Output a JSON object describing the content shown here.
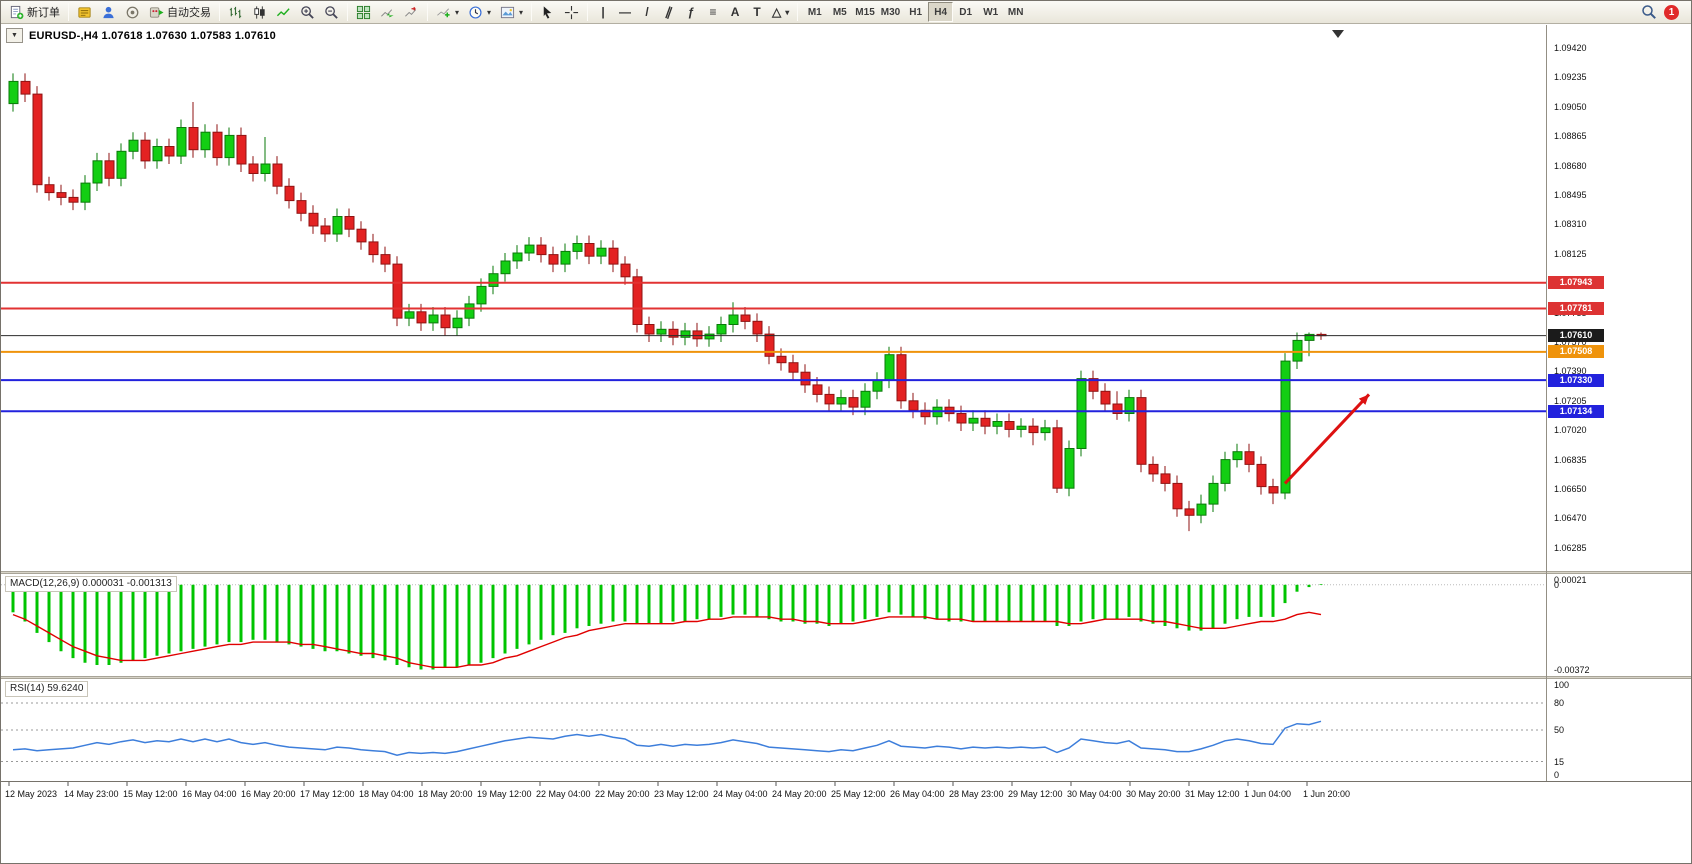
{
  "toolbar": {
    "new_order_label": "新订单",
    "auto_trading_label": "自动交易",
    "timeframes": [
      "M1",
      "M5",
      "M15",
      "M30",
      "H1",
      "H4",
      "D1",
      "W1",
      "MN"
    ],
    "active_timeframe": "H4",
    "notification_count": "1",
    "draw_tools": [
      {
        "name": "vertical-line",
        "glyph": "|"
      },
      {
        "name": "horizontal-line",
        "glyph": "—"
      },
      {
        "name": "trend-line",
        "glyph": "/"
      },
      {
        "name": "equidistant-channel",
        "glyph": "∥",
        "rotate": 20
      },
      {
        "name": "fibonacci-retracement",
        "glyph": "ƒ"
      },
      {
        "name": "cycle-lines",
        "glyph": "≡"
      },
      {
        "name": "text",
        "glyph": "A"
      },
      {
        "name": "text-label",
        "glyph": "T"
      },
      {
        "name": "arrows-shapes",
        "glyph": "△",
        "dropdown": true
      }
    ]
  },
  "chart": {
    "symbol_period": "EURUSD-,H4",
    "ohlc_line": "1.07618 1.07630 1.07583 1.07610",
    "price_axis_labels": [
      "1.09420",
      "1.09235",
      "1.09050",
      "1.08865",
      "1.08680",
      "1.08495",
      "1.08310",
      "1.08125",
      "1.07940",
      "1.07755",
      "1.07570",
      "1.07390",
      "1.07205",
      "1.07020",
      "1.06835",
      "1.06650",
      "1.06470",
      "1.06285"
    ],
    "price_tags": [
      {
        "text": "1.07943",
        "price": 1.07943,
        "bg": "#dd3333"
      },
      {
        "text": "1.07781",
        "price": 1.07781,
        "bg": "#dd3333"
      },
      {
        "text": "1.07610",
        "price": 1.0761,
        "bg": "#1b1b1b"
      },
      {
        "text": "1.07508",
        "price": 1.07508,
        "bg": "#ef930b"
      },
      {
        "text": "1.07330",
        "price": 1.0733,
        "bg": "#2222dd"
      },
      {
        "text": "1.07134",
        "price": 1.07134,
        "bg": "#2222dd"
      }
    ],
    "time_axis_labels": [
      "12 May 2023",
      "14 May 23:00",
      "15 May 12:00",
      "16 May 04:00",
      "16 May 20:00",
      "17 May 12:00",
      "18 May 04:00",
      "18 May 20:00",
      "19 May 12:00",
      "22 May 04:00",
      "22 May 20:00",
      "23 May 12:00",
      "24 May 04:00",
      "24 May 20:00",
      "25 May 12:00",
      "26 May 04:00",
      "28 May 23:00",
      "29 May 12:00",
      "30 May 04:00",
      "30 May 20:00",
      "31 May 12:00",
      "1 Jun 04:00",
      "1 Jun 20:00"
    ]
  },
  "chart_data": {
    "type": "candlestick",
    "symbol": "EURUSD",
    "timeframe": "H4",
    "current_ohlc": {
      "open": "1.07618",
      "high": "1.07630",
      "low": "1.07583",
      "close": "1.07610"
    },
    "y_range": [
      1.0613,
      1.0956
    ],
    "style": {
      "up_fill": "#13ce13",
      "up_border": "#0a7a0a",
      "down_fill": "#e32222",
      "down_border": "#8f1313"
    },
    "candles": [
      [
        1.0907,
        1.0926,
        1.0902,
        1.0921
      ],
      [
        1.0921,
        1.0926,
        1.0908,
        1.0913
      ],
      [
        1.0913,
        1.0918,
        1.0851,
        1.0856
      ],
      [
        1.0856,
        1.0861,
        1.0846,
        1.0851
      ],
      [
        1.0851,
        1.0856,
        1.0843,
        1.0848
      ],
      [
        1.0848,
        1.0853,
        1.084,
        1.0845
      ],
      [
        1.0845,
        1.0862,
        1.084,
        1.0857
      ],
      [
        1.0857,
        1.0876,
        1.0852,
        1.0871
      ],
      [
        1.0871,
        1.0876,
        1.0855,
        1.086
      ],
      [
        1.086,
        1.0882,
        1.0855,
        1.0877
      ],
      [
        1.0877,
        1.0889,
        1.0872,
        1.0884
      ],
      [
        1.0884,
        1.0889,
        1.0866,
        1.0871
      ],
      [
        1.0871,
        1.0885,
        1.0866,
        1.088
      ],
      [
        1.088,
        1.0885,
        1.0869,
        1.0874
      ],
      [
        1.0874,
        1.0897,
        1.0869,
        1.0892
      ],
      [
        1.0892,
        1.0908,
        1.0873,
        1.0878
      ],
      [
        1.0878,
        1.0894,
        1.0873,
        1.0889
      ],
      [
        1.0889,
        1.0894,
        1.0868,
        1.0873
      ],
      [
        1.0873,
        1.0892,
        1.0868,
        1.0887
      ],
      [
        1.0887,
        1.0892,
        1.0864,
        1.0869
      ],
      [
        1.0869,
        1.0874,
        1.0858,
        1.0863
      ],
      [
        1.0863,
        1.0886,
        1.0858,
        1.0869
      ],
      [
        1.0869,
        1.0874,
        1.085,
        1.0855
      ],
      [
        1.0855,
        1.086,
        1.0841,
        1.0846
      ],
      [
        1.0846,
        1.0851,
        1.0833,
        1.0838
      ],
      [
        1.0838,
        1.0843,
        1.0825,
        1.083
      ],
      [
        1.083,
        1.0835,
        1.082,
        1.0825
      ],
      [
        1.0825,
        1.0841,
        1.082,
        1.0836
      ],
      [
        1.0836,
        1.0841,
        1.0823,
        1.0828
      ],
      [
        1.0828,
        1.0833,
        1.0815,
        1.082
      ],
      [
        1.082,
        1.0825,
        1.0807,
        1.0812
      ],
      [
        1.0812,
        1.0817,
        1.0801,
        1.0806
      ],
      [
        1.0806,
        1.0811,
        1.0767,
        1.0772
      ],
      [
        1.0772,
        1.0781,
        1.0767,
        1.0776
      ],
      [
        1.0776,
        1.0781,
        1.0764,
        1.0769
      ],
      [
        1.0769,
        1.0779,
        1.0764,
        1.0774
      ],
      [
        1.0774,
        1.0779,
        1.0761,
        1.0766
      ],
      [
        1.0766,
        1.0777,
        1.0761,
        1.0772
      ],
      [
        1.0772,
        1.0786,
        1.0767,
        1.0781
      ],
      [
        1.0781,
        1.0797,
        1.0776,
        1.0792
      ],
      [
        1.0792,
        1.0805,
        1.0787,
        1.08
      ],
      [
        1.08,
        1.0813,
        1.0795,
        1.0808
      ],
      [
        1.0808,
        1.0818,
        1.0803,
        1.0813
      ],
      [
        1.0813,
        1.0823,
        1.0808,
        1.0818
      ],
      [
        1.0818,
        1.0823,
        1.0807,
        1.0812
      ],
      [
        1.0812,
        1.0817,
        1.0801,
        1.0806
      ],
      [
        1.0806,
        1.0819,
        1.0801,
        1.0814
      ],
      [
        1.0814,
        1.0824,
        1.0809,
        1.0819
      ],
      [
        1.0819,
        1.0824,
        1.0806,
        1.0811
      ],
      [
        1.0811,
        1.0821,
        1.0806,
        1.0816
      ],
      [
        1.0816,
        1.0821,
        1.0801,
        1.0806
      ],
      [
        1.0806,
        1.0811,
        1.0793,
        1.0798
      ],
      [
        1.0798,
        1.0803,
        1.0763,
        1.0768
      ],
      [
        1.0768,
        1.0773,
        1.0757,
        1.0762
      ],
      [
        1.0762,
        1.077,
        1.0757,
        1.0765
      ],
      [
        1.0765,
        1.077,
        1.0755,
        1.076
      ],
      [
        1.076,
        1.0769,
        1.0755,
        1.0764
      ],
      [
        1.0764,
        1.0769,
        1.0754,
        1.0759
      ],
      [
        1.0759,
        1.0767,
        1.0754,
        1.0762
      ],
      [
        1.0762,
        1.0773,
        1.0757,
        1.0768
      ],
      [
        1.0768,
        1.0782,
        1.0763,
        1.0774
      ],
      [
        1.0774,
        1.0779,
        1.0765,
        1.077
      ],
      [
        1.077,
        1.0775,
        1.0757,
        1.0762
      ],
      [
        1.0762,
        1.0767,
        1.0743,
        1.0748
      ],
      [
        1.0748,
        1.0753,
        1.0739,
        1.0744
      ],
      [
        1.0744,
        1.0749,
        1.0733,
        1.0738
      ],
      [
        1.0738,
        1.0743,
        1.0725,
        1.073
      ],
      [
        1.073,
        1.0735,
        1.0719,
        1.0724
      ],
      [
        1.0724,
        1.0729,
        1.0713,
        1.0718
      ],
      [
        1.0718,
        1.0727,
        1.0713,
        1.0722
      ],
      [
        1.0722,
        1.0727,
        1.0711,
        1.0716
      ],
      [
        1.0716,
        1.0731,
        1.0711,
        1.0726
      ],
      [
        1.0726,
        1.0738,
        1.0721,
        1.0733
      ],
      [
        1.0733,
        1.0754,
        1.0728,
        1.0749
      ],
      [
        1.0749,
        1.0754,
        1.0715,
        1.072
      ],
      [
        1.072,
        1.0725,
        1.0709,
        1.0714
      ],
      [
        1.0714,
        1.0719,
        1.0705,
        1.071
      ],
      [
        1.071,
        1.0721,
        1.0705,
        1.0716
      ],
      [
        1.0716,
        1.0721,
        1.0707,
        1.0712
      ],
      [
        1.0712,
        1.0717,
        1.0701,
        1.0706
      ],
      [
        1.0706,
        1.0714,
        1.0701,
        1.0709
      ],
      [
        1.0709,
        1.0714,
        1.0699,
        1.0704
      ],
      [
        1.0704,
        1.0712,
        1.0699,
        1.0707
      ],
      [
        1.0707,
        1.0712,
        1.0697,
        1.0702
      ],
      [
        1.0702,
        1.0709,
        1.0697,
        1.0704
      ],
      [
        1.0704,
        1.0709,
        1.0692,
        1.07
      ],
      [
        1.07,
        1.0708,
        1.0695,
        1.0703
      ],
      [
        1.0703,
        1.0708,
        1.0662,
        1.0665
      ],
      [
        1.0665,
        1.0695,
        1.066,
        1.069
      ],
      [
        1.069,
        1.0739,
        1.0685,
        1.0734
      ],
      [
        1.0734,
        1.0739,
        1.0721,
        1.0726
      ],
      [
        1.0726,
        1.0731,
        1.0713,
        1.0718
      ],
      [
        1.0718,
        1.0726,
        1.0708,
        1.0712
      ],
      [
        1.0712,
        1.0727,
        1.0707,
        1.0722
      ],
      [
        1.0722,
        1.0727,
        1.0675,
        1.068
      ],
      [
        1.068,
        1.0685,
        1.0669,
        1.0674
      ],
      [
        1.0674,
        1.0679,
        1.0663,
        1.0668
      ],
      [
        1.0668,
        1.0673,
        1.0647,
        1.0652
      ],
      [
        1.0652,
        1.0657,
        1.0638,
        1.0648
      ],
      [
        1.0648,
        1.0661,
        1.0643,
        1.0655
      ],
      [
        1.0655,
        1.0673,
        1.065,
        1.0668
      ],
      [
        1.0668,
        1.0688,
        1.0663,
        1.0683
      ],
      [
        1.0683,
        1.0693,
        1.0678,
        1.0688
      ],
      [
        1.0688,
        1.0693,
        1.0675,
        1.068
      ],
      [
        1.068,
        1.0685,
        1.0661,
        1.0666
      ],
      [
        1.0666,
        1.0671,
        1.0655,
        1.0662
      ],
      [
        1.0662,
        1.075,
        1.0658,
        1.0745
      ],
      [
        1.0745,
        1.0763,
        1.074,
        1.0758
      ],
      [
        1.0758,
        1.0763,
        1.0748,
        1.07618
      ],
      [
        1.07618,
        1.0763,
        1.07583,
        1.0761
      ]
    ],
    "horizontal_levels": [
      {
        "name": "resistance-line-1",
        "price": 1.07943,
        "color": "#e23232",
        "width": 2
      },
      {
        "name": "resistance-line-2",
        "price": 1.07781,
        "color": "#e23232",
        "width": 2
      },
      {
        "name": "current-price-line",
        "price": 1.0761,
        "color": "#2b2b2b",
        "width": 1
      },
      {
        "name": "pivot-line",
        "price": 1.07508,
        "color": "#ef930b",
        "width": 2
      },
      {
        "name": "support-line-1",
        "price": 1.0733,
        "color": "#2222dd",
        "width": 2
      },
      {
        "name": "support-line-2",
        "price": 1.07134,
        "color": "#2222dd",
        "width": 2
      }
    ],
    "arrow": {
      "from_index": 106,
      "from_price": 1.0668,
      "to_index": 113,
      "to_price": 1.0724,
      "color": "#dd1111"
    },
    "indicators": [
      {
        "name": "MACD",
        "label": "MACD(12,26,9) 0.000031 -0.001313",
        "range_max": 0.00021,
        "range_min": -0.00372,
        "histogram_color": "#00c400",
        "signal_color": "#e00000",
        "scale_labels": [
          {
            "text": "0.00021",
            "value": 0.00021
          },
          {
            "text": "0",
            "value": 0
          },
          {
            "text": "-0.00372",
            "value": -0.00372
          }
        ],
        "histogram": [
          -0.0012,
          -0.0016,
          -0.0021,
          -0.0025,
          -0.0029,
          -0.0032,
          -0.0034,
          -0.0035,
          -0.0035,
          -0.0034,
          -0.0033,
          -0.0032,
          -0.0031,
          -0.003,
          -0.0029,
          -0.0028,
          -0.0027,
          -0.0026,
          -0.0025,
          -0.0025,
          -0.0024,
          -0.0024,
          -0.0025,
          -0.0026,
          -0.0027,
          -0.0028,
          -0.0029,
          -0.0029,
          -0.003,
          -0.0031,
          -0.0032,
          -0.0033,
          -0.0035,
          -0.0036,
          -0.0037,
          -0.0037,
          -0.0036,
          -0.0036,
          -0.0035,
          -0.0034,
          -0.0032,
          -0.003,
          -0.0028,
          -0.0026,
          -0.0024,
          -0.0022,
          -0.0021,
          -0.0019,
          -0.0018,
          -0.0017,
          -0.0016,
          -0.0016,
          -0.0017,
          -0.0017,
          -0.0017,
          -0.0016,
          -0.0016,
          -0.0015,
          -0.0015,
          -0.0014,
          -0.0013,
          -0.0013,
          -0.0014,
          -0.0015,
          -0.0016,
          -0.0016,
          -0.0017,
          -0.0017,
          -0.0018,
          -0.0017,
          -0.0016,
          -0.0015,
          -0.0014,
          -0.0012,
          -0.0013,
          -0.0014,
          -0.0015,
          -0.0015,
          -0.0016,
          -0.0016,
          -0.0016,
          -0.0016,
          -0.0016,
          -0.0016,
          -0.0016,
          -0.0016,
          -0.0016,
          -0.0018,
          -0.0018,
          -0.0016,
          -0.0015,
          -0.0015,
          -0.0015,
          -0.0014,
          -0.0016,
          -0.0017,
          -0.0018,
          -0.0019,
          -0.002,
          -0.002,
          -0.0019,
          -0.0017,
          -0.0015,
          -0.0014,
          -0.0014,
          -0.0014,
          -0.0008,
          -0.0003,
          -0.0001,
          3e-05
        ],
        "signal": [
          -0.0013,
          -0.0015,
          -0.0018,
          -0.0021,
          -0.0024,
          -0.0027,
          -0.0029,
          -0.0031,
          -0.0032,
          -0.0033,
          -0.0033,
          -0.0033,
          -0.0032,
          -0.0031,
          -0.003,
          -0.0029,
          -0.0028,
          -0.0027,
          -0.0026,
          -0.0026,
          -0.0025,
          -0.0025,
          -0.0025,
          -0.0025,
          -0.0026,
          -0.0026,
          -0.0027,
          -0.0028,
          -0.0029,
          -0.003,
          -0.003,
          -0.0031,
          -0.0032,
          -0.0034,
          -0.0035,
          -0.0036,
          -0.0036,
          -0.0036,
          -0.0035,
          -0.0035,
          -0.0034,
          -0.0032,
          -0.0031,
          -0.0029,
          -0.0027,
          -0.0025,
          -0.0023,
          -0.0022,
          -0.002,
          -0.0019,
          -0.0018,
          -0.0017,
          -0.0017,
          -0.0017,
          -0.0017,
          -0.0017,
          -0.0016,
          -0.0016,
          -0.0015,
          -0.0015,
          -0.0014,
          -0.0014,
          -0.0014,
          -0.0014,
          -0.0015,
          -0.0015,
          -0.0016,
          -0.0016,
          -0.0017,
          -0.0017,
          -0.0017,
          -0.0016,
          -0.0015,
          -0.0014,
          -0.0014,
          -0.0014,
          -0.0014,
          -0.0015,
          -0.0015,
          -0.0015,
          -0.0016,
          -0.0016,
          -0.0016,
          -0.0016,
          -0.0016,
          -0.0016,
          -0.0016,
          -0.0016,
          -0.0017,
          -0.0017,
          -0.0016,
          -0.0015,
          -0.0015,
          -0.0015,
          -0.0015,
          -0.0016,
          -0.0016,
          -0.0017,
          -0.0018,
          -0.0019,
          -0.0019,
          -0.0019,
          -0.0018,
          -0.0017,
          -0.0016,
          -0.0016,
          -0.0015,
          -0.0013,
          -0.0012,
          -0.0013
        ]
      },
      {
        "name": "RSI",
        "label": "RSI(14) 59.6240",
        "color": "#3d7edb",
        "levels": [
          80,
          50,
          15
        ],
        "scale_labels": [
          {
            "text": "100",
            "value": 100
          },
          {
            "text": "80",
            "value": 80
          },
          {
            "text": "50",
            "value": 50
          },
          {
            "text": "15",
            "value": 15
          },
          {
            "text": "0",
            "value": 0
          }
        ],
        "values": [
          28,
          29,
          27,
          28,
          29,
          30,
          33,
          36,
          34,
          37,
          39,
          36,
          38,
          37,
          40,
          37,
          40,
          37,
          40,
          36,
          34,
          36,
          33,
          31,
          30,
          29,
          28,
          31,
          30,
          28,
          27,
          26,
          22,
          25,
          24,
          25,
          24,
          26,
          29,
          32,
          35,
          38,
          40,
          42,
          41,
          40,
          43,
          45,
          43,
          45,
          42,
          40,
          33,
          32,
          34,
          32,
          34,
          33,
          34,
          36,
          39,
          37,
          35,
          31,
          30,
          29,
          28,
          27,
          26,
          28,
          27,
          30,
          33,
          38,
          32,
          31,
          30,
          32,
          31,
          29,
          31,
          30,
          31,
          30,
          31,
          30,
          31,
          25,
          30,
          40,
          38,
          36,
          35,
          38,
          30,
          29,
          28,
          26,
          26,
          29,
          33,
          38,
          40,
          38,
          35,
          34,
          52,
          57,
          56,
          59.624
        ]
      }
    ]
  }
}
